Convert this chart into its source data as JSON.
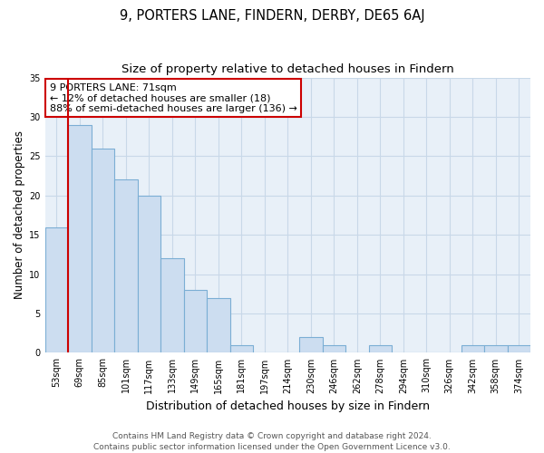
{
  "title": "9, PORTERS LANE, FINDERN, DERBY, DE65 6AJ",
  "subtitle": "Size of property relative to detached houses in Findern",
  "xlabel": "Distribution of detached houses by size in Findern",
  "ylabel": "Number of detached properties",
  "bar_labels": [
    "53sqm",
    "69sqm",
    "85sqm",
    "101sqm",
    "117sqm",
    "133sqm",
    "149sqm",
    "165sqm",
    "181sqm",
    "197sqm",
    "214sqm",
    "230sqm",
    "246sqm",
    "262sqm",
    "278sqm",
    "294sqm",
    "310sqm",
    "326sqm",
    "342sqm",
    "358sqm",
    "374sqm"
  ],
  "bar_values": [
    16,
    29,
    26,
    22,
    20,
    12,
    8,
    7,
    1,
    0,
    0,
    2,
    1,
    0,
    1,
    0,
    0,
    0,
    1,
    1,
    1
  ],
  "bar_color": "#ccddf0",
  "bar_edge_color": "#7baed4",
  "reference_line_color": "#cc0000",
  "annotation_text": "9 PORTERS LANE: 71sqm\n← 12% of detached houses are smaller (18)\n88% of semi-detached houses are larger (136) →",
  "annotation_box_color": "#ffffff",
  "annotation_box_edge": "#cc0000",
  "ylim": [
    0,
    35
  ],
  "yticks": [
    0,
    5,
    10,
    15,
    20,
    25,
    30,
    35
  ],
  "grid_color": "#c8d8e8",
  "footer_line1": "Contains HM Land Registry data © Crown copyright and database right 2024.",
  "footer_line2": "Contains public sector information licensed under the Open Government Licence v3.0.",
  "title_fontsize": 10.5,
  "subtitle_fontsize": 9.5,
  "xlabel_fontsize": 9,
  "ylabel_fontsize": 8.5,
  "tick_fontsize": 7,
  "annotation_fontsize": 8,
  "footer_fontsize": 6.5,
  "bg_color": "#e8f0f8"
}
